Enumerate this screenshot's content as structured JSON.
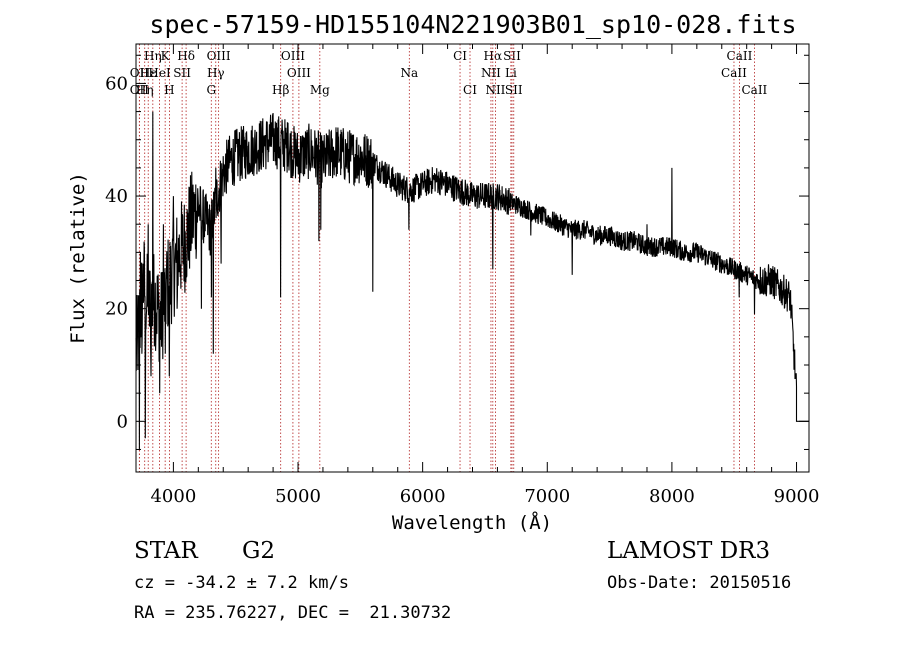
{
  "chart_data": {
    "type": "line",
    "title": "spec-57159-HD155104N221903B01_sp10-028.fits",
    "xlabel": "Wavelength (Å)",
    "ylabel": "Flux (relative)",
    "xlim": [
      3700,
      9100
    ],
    "ylim": [
      -9,
      67
    ],
    "xticks": [
      4000,
      5000,
      6000,
      7000,
      8000,
      9000
    ],
    "yticks": [
      0,
      20,
      40,
      60
    ],
    "spectrum_anchors": {
      "x": [
        3700,
        3730,
        3760,
        3800,
        3850,
        3900,
        3950,
        4000,
        4050,
        4100,
        4150,
        4200,
        4250,
        4300,
        4350,
        4400,
        4450,
        4500,
        4600,
        4700,
        4800,
        4900,
        5000,
        5100,
        5200,
        5300,
        5400,
        5500,
        5600,
        5700,
        5800,
        5900,
        6000,
        6100,
        6200,
        6300,
        6400,
        6500,
        6600,
        6700,
        6800,
        6900,
        7000,
        7100,
        7200,
        7300,
        7400,
        7500,
        7600,
        7700,
        7800,
        7900,
        8000,
        8100,
        8200,
        8300,
        8400,
        8500,
        8600,
        8700,
        8800,
        8850,
        8900,
        8950,
        9000
      ],
      "y": [
        12,
        18,
        25,
        20,
        22,
        18,
        24,
        27,
        30,
        32,
        36,
        38,
        36,
        34,
        40,
        44,
        46,
        47,
        48,
        49,
        50,
        49,
        47,
        48,
        46,
        48,
        47,
        47,
        46,
        44,
        42,
        41,
        42,
        43,
        42,
        41,
        40,
        40,
        40,
        39,
        38,
        37,
        36,
        35,
        34,
        34,
        33,
        33,
        32,
        32,
        31,
        31,
        31,
        30,
        30,
        29,
        28,
        27,
        26,
        25,
        25,
        24,
        23,
        22,
        5
      ]
    },
    "spectrum_features": {
      "x": [
        3728,
        3735,
        3748,
        3775,
        3798,
        3820,
        3835,
        3860,
        3889,
        3920,
        3934,
        3968,
        4000,
        4030,
        4102,
        4226,
        4305,
        4320,
        4340,
        4383,
        4861,
        4920,
        5015,
        5167,
        5183,
        5270,
        5600,
        5890,
        6563,
        6867,
        7200,
        7600,
        7800,
        8000,
        8540,
        8662,
        8830
      ],
      "y": [
        -5,
        30,
        12,
        -3,
        35,
        8,
        55,
        15,
        5,
        35,
        12,
        8,
        40,
        20,
        28,
        20,
        22,
        12,
        45,
        28,
        22,
        53,
        44,
        32,
        34,
        46,
        23,
        34,
        27,
        33,
        26,
        31,
        35,
        45,
        22,
        19,
        25
      ]
    },
    "lines": [
      {
        "label": "Hη",
        "wavelength": 3835,
        "row": 0
      },
      {
        "label": "K",
        "wavelength": 3934,
        "row": 0
      },
      {
        "label": "Hδ",
        "wavelength": 4102,
        "row": 0
      },
      {
        "label": "OIII",
        "wavelength": 4363,
        "row": 0
      },
      {
        "label": "OIII",
        "wavelength": 4959,
        "row": 0
      },
      {
        "label": "CI",
        "wavelength": 6300,
        "row": 0
      },
      {
        "label": "Hα",
        "wavelength": 6563,
        "row": 0
      },
      {
        "label": "SII",
        "wavelength": 6717,
        "row": 0
      },
      {
        "label": "CaII",
        "wavelength": 8542,
        "row": 0
      },
      {
        "label": "OII",
        "wavelength": 3727,
        "row": 1
      },
      {
        "label": "Hε",
        "wavelength": 3798,
        "row": 1
      },
      {
        "label": "HeI",
        "wavelength": 3889,
        "row": 1
      },
      {
        "label": "SII",
        "wavelength": 4070,
        "row": 1
      },
      {
        "label": "Hγ",
        "wavelength": 4340,
        "row": 1
      },
      {
        "label": "OIII",
        "wavelength": 5007,
        "row": 1
      },
      {
        "label": "Na",
        "wavelength": 5893,
        "row": 1
      },
      {
        "label": "NII",
        "wavelength": 6548,
        "row": 1
      },
      {
        "label": "Li",
        "wavelength": 6708,
        "row": 1
      },
      {
        "label": "CaII",
        "wavelength": 8498,
        "row": 1
      },
      {
        "label": "OII",
        "wavelength": 3727,
        "row": 2
      },
      {
        "label": "Hη",
        "wavelength": 3770,
        "row": 2
      },
      {
        "label": "H",
        "wavelength": 3968,
        "row": 2
      },
      {
        "label": "G",
        "wavelength": 4304,
        "row": 2
      },
      {
        "label": "Hβ",
        "wavelength": 4861,
        "row": 2
      },
      {
        "label": "Mg",
        "wavelength": 5175,
        "row": 2
      },
      {
        "label": "CI",
        "wavelength": 6380,
        "row": 2
      },
      {
        "label": "NII",
        "wavelength": 6584,
        "row": 2
      },
      {
        "label": "SII",
        "wavelength": 6731,
        "row": 2
      },
      {
        "label": "CaII",
        "wavelength": 8662,
        "row": 2
      }
    ]
  },
  "info": {
    "object_class": "STAR",
    "subclass": "G2",
    "survey": "LAMOST DR3",
    "cz": "cz = -34.2 ± 7.2 km/s",
    "obs_date": "Obs-Date: 20150516",
    "coords": "RA = 235.76227, DEC =  21.30732"
  },
  "colors": {
    "line_marker": "#b22222",
    "spectrum": "#000000",
    "axes": "#000000"
  }
}
